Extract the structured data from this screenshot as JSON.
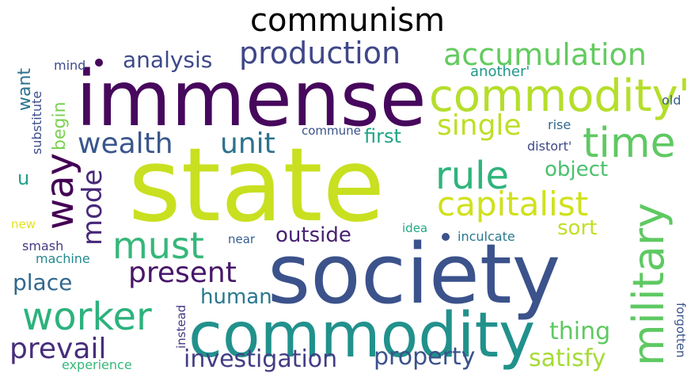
{
  "title": "communism",
  "words": [
    {
      "text": "state",
      "color": "#c8e020"
    },
    {
      "text": "immense",
      "color": "#46085c"
    },
    {
      "text": "society",
      "color": "#3b528b"
    },
    {
      "text": "commodity",
      "color": "#21918c"
    },
    {
      "text": "commodity'",
      "color": "#b5de2b"
    },
    {
      "text": "military",
      "color": "#5ec962"
    },
    {
      "text": "accumulation",
      "color": "#63cb5f"
    },
    {
      "text": "production",
      "color": "#3f4788"
    },
    {
      "text": "time",
      "color": "#5ec962"
    },
    {
      "text": "rule",
      "color": "#2fb47c"
    },
    {
      "text": "way",
      "color": "#440154"
    },
    {
      "text": "must",
      "color": "#35b779"
    },
    {
      "text": "worker",
      "color": "#2db27d"
    },
    {
      "text": "capitalist",
      "color": "#d0e11c"
    },
    {
      "text": "wealth",
      "color": "#39568c"
    },
    {
      "text": "unit",
      "color": "#2c728e"
    },
    {
      "text": "single",
      "color": "#bddf26"
    },
    {
      "text": "prevail",
      "color": "#472d7b"
    },
    {
      "text": "present",
      "color": "#481769"
    },
    {
      "text": "analysis",
      "color": "#3e4989"
    },
    {
      "text": "investigation",
      "color": "#433e85"
    },
    {
      "text": "property",
      "color": "#3b528b"
    },
    {
      "text": "satisfy",
      "color": "#a5db36"
    },
    {
      "text": "thing",
      "color": "#5ec962"
    },
    {
      "text": "mode",
      "color": "#482878"
    },
    {
      "text": "outside",
      "color": "#482173"
    },
    {
      "text": "object",
      "color": "#4ac16d"
    },
    {
      "text": "sort",
      "color": "#c2df23"
    },
    {
      "text": "human",
      "color": "#2a788e"
    },
    {
      "text": "place",
      "color": "#31688e"
    },
    {
      "text": "first",
      "color": "#20a486"
    },
    {
      "text": "begin",
      "color": "#7ad151"
    },
    {
      "text": "want",
      "color": "#2c728e"
    },
    {
      "text": "u",
      "color": "#1f9e89"
    },
    {
      "text": "another'",
      "color": "#1f988b"
    },
    {
      "text": "commune",
      "color": "#3b528b"
    },
    {
      "text": "rise",
      "color": "#31688e"
    },
    {
      "text": "distort'",
      "color": "#3e4989"
    },
    {
      "text": "old",
      "color": "#35608d"
    },
    {
      "text": "mind",
      "color": "#3e4a89"
    },
    {
      "text": "substitute",
      "color": "#3d4d8a"
    },
    {
      "text": "new",
      "color": "#e5e419"
    },
    {
      "text": "smash",
      "color": "#443a83"
    },
    {
      "text": "machine",
      "color": "#23898e"
    },
    {
      "text": "near",
      "color": "#355f8d"
    },
    {
      "text": "idea",
      "color": "#22a884"
    },
    {
      "text": "inculcate",
      "color": "#2a788e"
    },
    {
      "text": "forgotten",
      "color": "#3b528b"
    },
    {
      "text": "instead",
      "color": "#443983"
    },
    {
      "text": "experience",
      "color": "#35b779"
    }
  ]
}
